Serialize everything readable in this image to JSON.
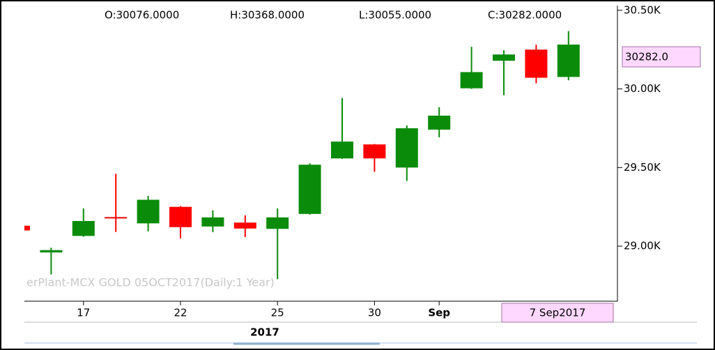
{
  "chart_data": {
    "type": "candlestick",
    "header": [
      "O:30076.0000",
      "H:30368.0000",
      "L:30055.0000",
      "C:30282.0000"
    ],
    "watermark": "erPlant-MCX GOLD 05OCT2017(Daily:1 Year)",
    "price_tag": "30282.0",
    "cursor_label": "7 Sep2017",
    "year_label": "2017",
    "categories": [
      null,
      null,
      "17",
      null,
      null,
      "22",
      null,
      null,
      "25",
      null,
      null,
      "30",
      null,
      "Sep",
      null,
      null,
      null,
      null
    ],
    "open": [
      29130,
      28960,
      29065,
      29185,
      29145,
      29250,
      29125,
      29150,
      29110,
      29205,
      29558,
      29647,
      29500,
      29741,
      30004,
      30179,
      30250,
      30076
    ],
    "high": [
      29135,
      28990,
      29240,
      29460,
      29320,
      29255,
      29228,
      29196,
      29241,
      29527,
      29942,
      29650,
      29768,
      29884,
      30268,
      30246,
      30281,
      30368
    ],
    "low": [
      29095,
      28820,
      29060,
      29090,
      29094,
      29049,
      29089,
      29058,
      28790,
      29201,
      29555,
      29473,
      29415,
      29692,
      30000,
      29960,
      30036,
      30055
    ],
    "close": [
      29100,
      28975,
      29160,
      29180,
      29295,
      29121,
      29183,
      29112,
      29183,
      29518,
      29665,
      29558,
      29750,
      29830,
      30107,
      30219,
      30071,
      30282
    ],
    "up_color": "#0a8c0a",
    "down_color": "#ff0000",
    "ylim": [
      28650,
      30530
    ],
    "yticks": [
      {
        "value": 29000,
        "label": "29.00K"
      },
      {
        "value": 29500,
        "label": "29.50K"
      },
      {
        "value": 30000,
        "label": "30.00K"
      },
      {
        "value": 30500,
        "label": "30.50K"
      }
    ]
  }
}
